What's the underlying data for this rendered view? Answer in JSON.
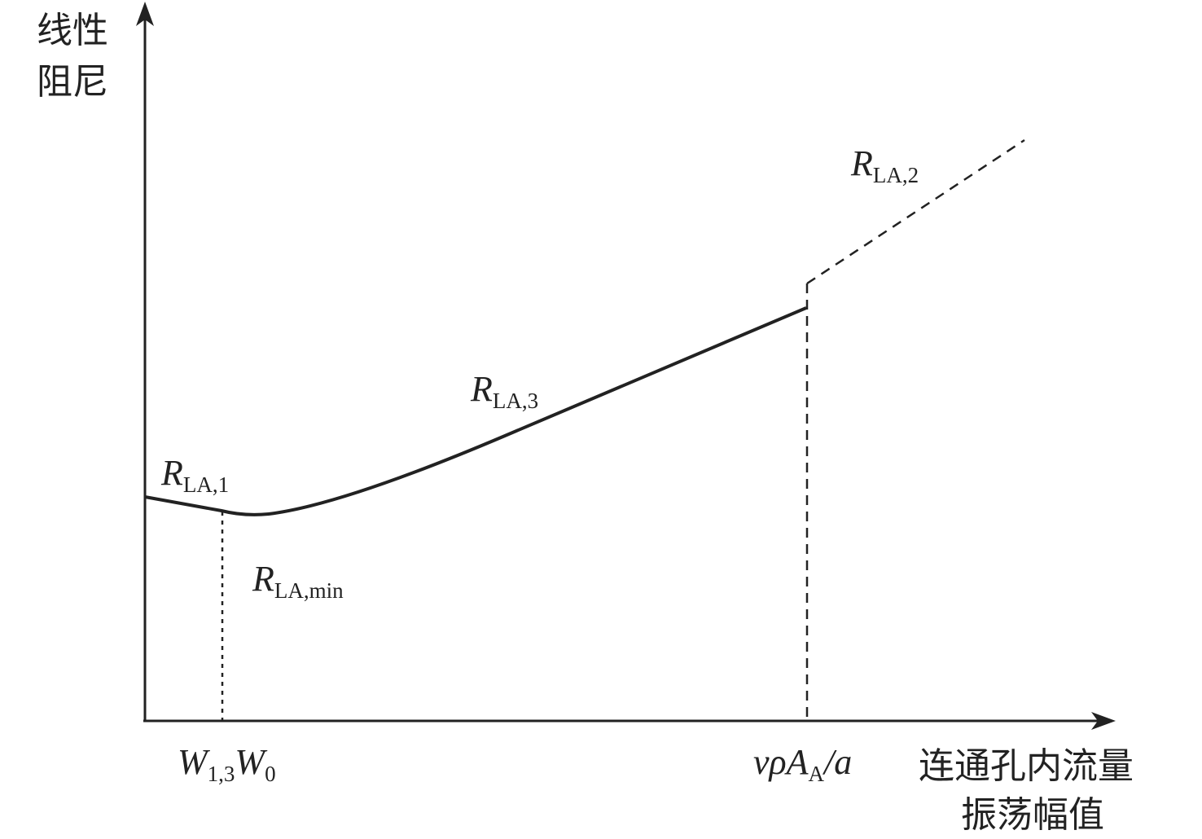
{
  "axes": {
    "y_label": [
      "线性",
      "阻尼"
    ],
    "x_label": [
      "连通孔内流量",
      "振荡幅值"
    ]
  },
  "curve_labels": [
    {
      "main": "R",
      "sub": "LA,1"
    },
    {
      "main": "R",
      "sub": "LA,3"
    },
    {
      "main": "R",
      "sub": "LA,2"
    },
    {
      "main": "R",
      "sub": "LA,min"
    }
  ],
  "x_marks": [
    {
      "parts": [
        {
          "main": "W",
          "sub": "1,3"
        },
        {
          "main": "W",
          "sub": "0"
        }
      ]
    },
    {
      "parts": [
        {
          "main": "vρA",
          "sub": "A"
        },
        {
          "main": "/a"
        }
      ]
    }
  ]
}
